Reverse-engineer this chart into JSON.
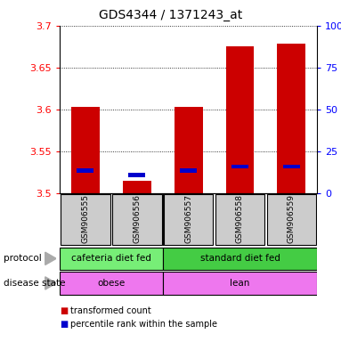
{
  "title": "GDS4344 / 1371243_at",
  "samples": [
    "GSM906555",
    "GSM906556",
    "GSM906557",
    "GSM906558",
    "GSM906559"
  ],
  "bar_bottoms": [
    3.5,
    3.5,
    3.5,
    3.5,
    3.5
  ],
  "bar_tops": [
    3.603,
    3.515,
    3.603,
    3.675,
    3.678
  ],
  "blue_marks": [
    3.527,
    3.522,
    3.527,
    3.532,
    3.532
  ],
  "ylim": [
    3.5,
    3.7
  ],
  "yticks_left": [
    3.5,
    3.55,
    3.6,
    3.65,
    3.7
  ],
  "yticks_right": [
    0,
    25,
    50,
    75,
    100
  ],
  "ytick_labels_left": [
    "3.5",
    "3.55",
    "3.6",
    "3.65",
    "3.7"
  ],
  "ytick_labels_right": [
    "0",
    "25",
    "50",
    "75",
    "100%"
  ],
  "bar_color": "#cc0000",
  "blue_color": "#0000cc",
  "protocol_label": "protocol",
  "disease_label": "disease state",
  "legend_red": "transformed count",
  "legend_blue": "percentile rank within the sample",
  "cafe_color": "#77ee77",
  "std_color": "#44cc44",
  "disease_color": "#ee77ee",
  "sample_bg": "#cccccc"
}
